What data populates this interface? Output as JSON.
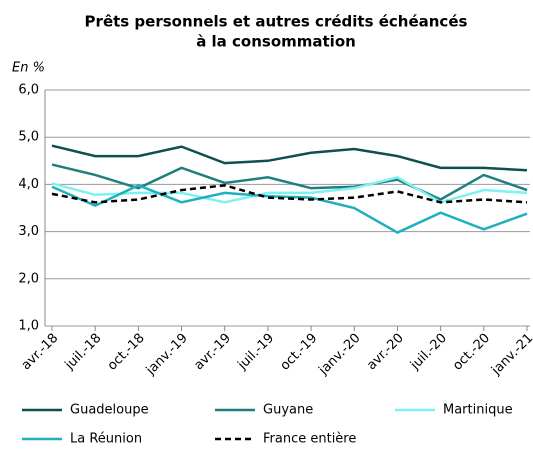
{
  "chart_data": {
    "type": "line",
    "title": [
      "Prêts personnels et autres crédits échéancés",
      "à la consommation"
    ],
    "y_label": "En %",
    "categories": [
      "avr.-18",
      "juil.-18",
      "oct.-18",
      "janv.-19",
      "avr.-19",
      "juil.-19",
      "oct.-19",
      "janv.-20",
      "avr.-20",
      "juil.-20",
      "oct.-20",
      "janv.-21"
    ],
    "series": [
      {
        "name": "Guadeloupe",
        "color": "#0f4f4f",
        "values": [
          4.82,
          4.6,
          4.6,
          4.8,
          4.45,
          4.5,
          4.67,
          4.75,
          4.6,
          4.35,
          4.35,
          4.3
        ]
      },
      {
        "name": "Guyane",
        "color": "#1f7f7f",
        "values": [
          4.42,
          4.2,
          3.92,
          4.35,
          4.03,
          4.15,
          3.92,
          3.95,
          4.1,
          3.68,
          4.2,
          3.88
        ]
      },
      {
        "name": "Martinique",
        "color": "#80f0f0",
        "values": [
          4.02,
          3.78,
          3.82,
          3.82,
          3.62,
          3.82,
          3.82,
          3.92,
          4.15,
          3.62,
          3.88,
          3.82
        ]
      },
      {
        "name": "La Réunion",
        "color": "#1fb0bf",
        "values": [
          3.95,
          3.55,
          3.98,
          3.62,
          3.82,
          3.75,
          3.72,
          3.5,
          2.98,
          3.4,
          3.05,
          3.38
        ]
      },
      {
        "name": "France entière",
        "color": "#000000",
        "dash": true,
        "values": [
          3.8,
          3.62,
          3.68,
          3.88,
          3.98,
          3.72,
          3.68,
          3.72,
          3.85,
          3.62,
          3.68,
          3.62
        ]
      }
    ],
    "ylim": [
      1,
      6
    ],
    "yticks": [
      {
        "value": 1,
        "label": "1,0"
      },
      {
        "value": 2,
        "label": "2,0"
      },
      {
        "value": 3,
        "label": "3,0"
      },
      {
        "value": 4,
        "label": "4,0"
      },
      {
        "value": 5,
        "label": "5,0"
      },
      {
        "value": 6,
        "label": "6,0"
      }
    ],
    "grid": true
  }
}
